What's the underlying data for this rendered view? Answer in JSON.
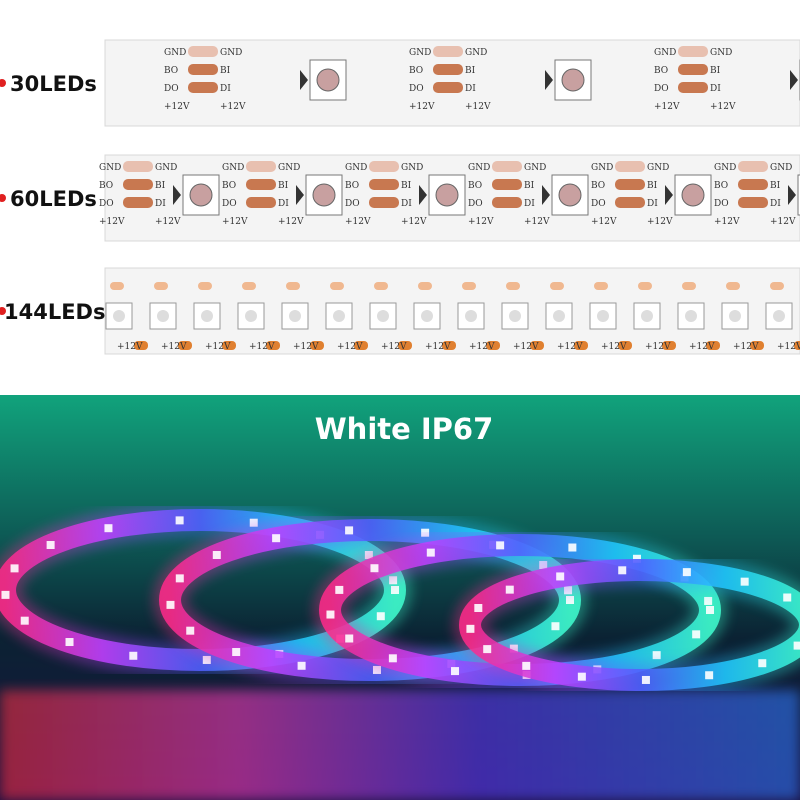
{
  "strips": [
    {
      "label": "30LEDs"
    },
    {
      "label": "60LEDs"
    },
    {
      "label": "144LEDs"
    }
  ],
  "pads": {
    "gnd": "GND",
    "bo": "BO",
    "bi": "BI",
    "do": "DO",
    "di": "DI",
    "power": "+12V"
  },
  "caption": "White IP67"
}
